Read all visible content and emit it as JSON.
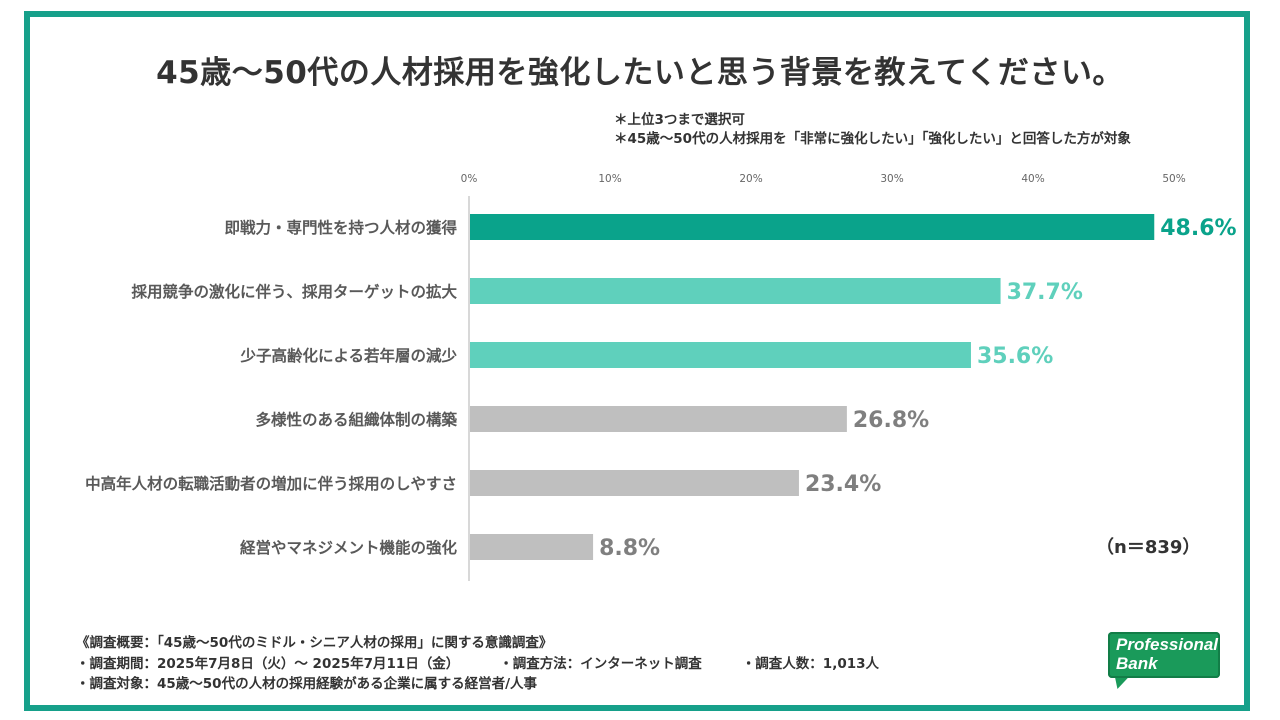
{
  "title": "45歳〜50代の人材採用を強化したいと思う背景を教えてください。",
  "notes": [
    "＊上位3つまで選択可",
    "＊45歳〜50代の人材採用を「非常に強化したい」「強化したい」と回答した方が対象"
  ],
  "n_label": "（n＝839）",
  "chart_data": {
    "type": "bar",
    "orientation": "horizontal",
    "categories": [
      "即戦力・専門性を持つ人材の獲得",
      "採用競争の激化に伴う、採用ターゲットの拡大",
      "少子高齢化による若年層の減少",
      "多様性のある組織体制の構築",
      "中高年人材の転職活動者の増加に伴う採用のしやすさ",
      "経営やマネジメント機能の強化"
    ],
    "values": [
      48.6,
      37.7,
      35.6,
      26.8,
      23.4,
      8.8
    ],
    "value_labels": [
      "48.6%",
      "37.7%",
      "35.6%",
      "26.8%",
      "23.4%",
      "8.8%"
    ],
    "bar_colors": [
      "#0aa38b",
      "#5fd0bc",
      "#5fd0bc",
      "#bfbfbf",
      "#bfbfbf",
      "#bfbfbf"
    ],
    "label_colors": [
      "#0aa38b",
      "#5fd0bc",
      "#5fd0bc",
      "#7f7f7f",
      "#7f7f7f",
      "#7f7f7f"
    ],
    "xlim": [
      0,
      50
    ],
    "xticks": [
      "0%",
      "10%",
      "20%",
      "30%",
      "40%",
      "50%"
    ],
    "grid": false,
    "legend": "none"
  },
  "survey": {
    "heading": "《調査概要：「45歳〜50代のミドル・シニア人材の採用」に関する意識調査》",
    "period": "・調査期間：2025年7月8日（火）〜 2025年7月11日（金）",
    "method": "・調査方法：インターネット調査",
    "respondents": "・調査人数：1,013人",
    "target": "・調査対象：45歳〜50代の人材の採用経験がある企業に属する経営者/人事"
  },
  "logo": {
    "line1": "Professional",
    "line2": "Bank",
    "color": "#1a9a5a"
  },
  "frame_color": "#16a08a"
}
